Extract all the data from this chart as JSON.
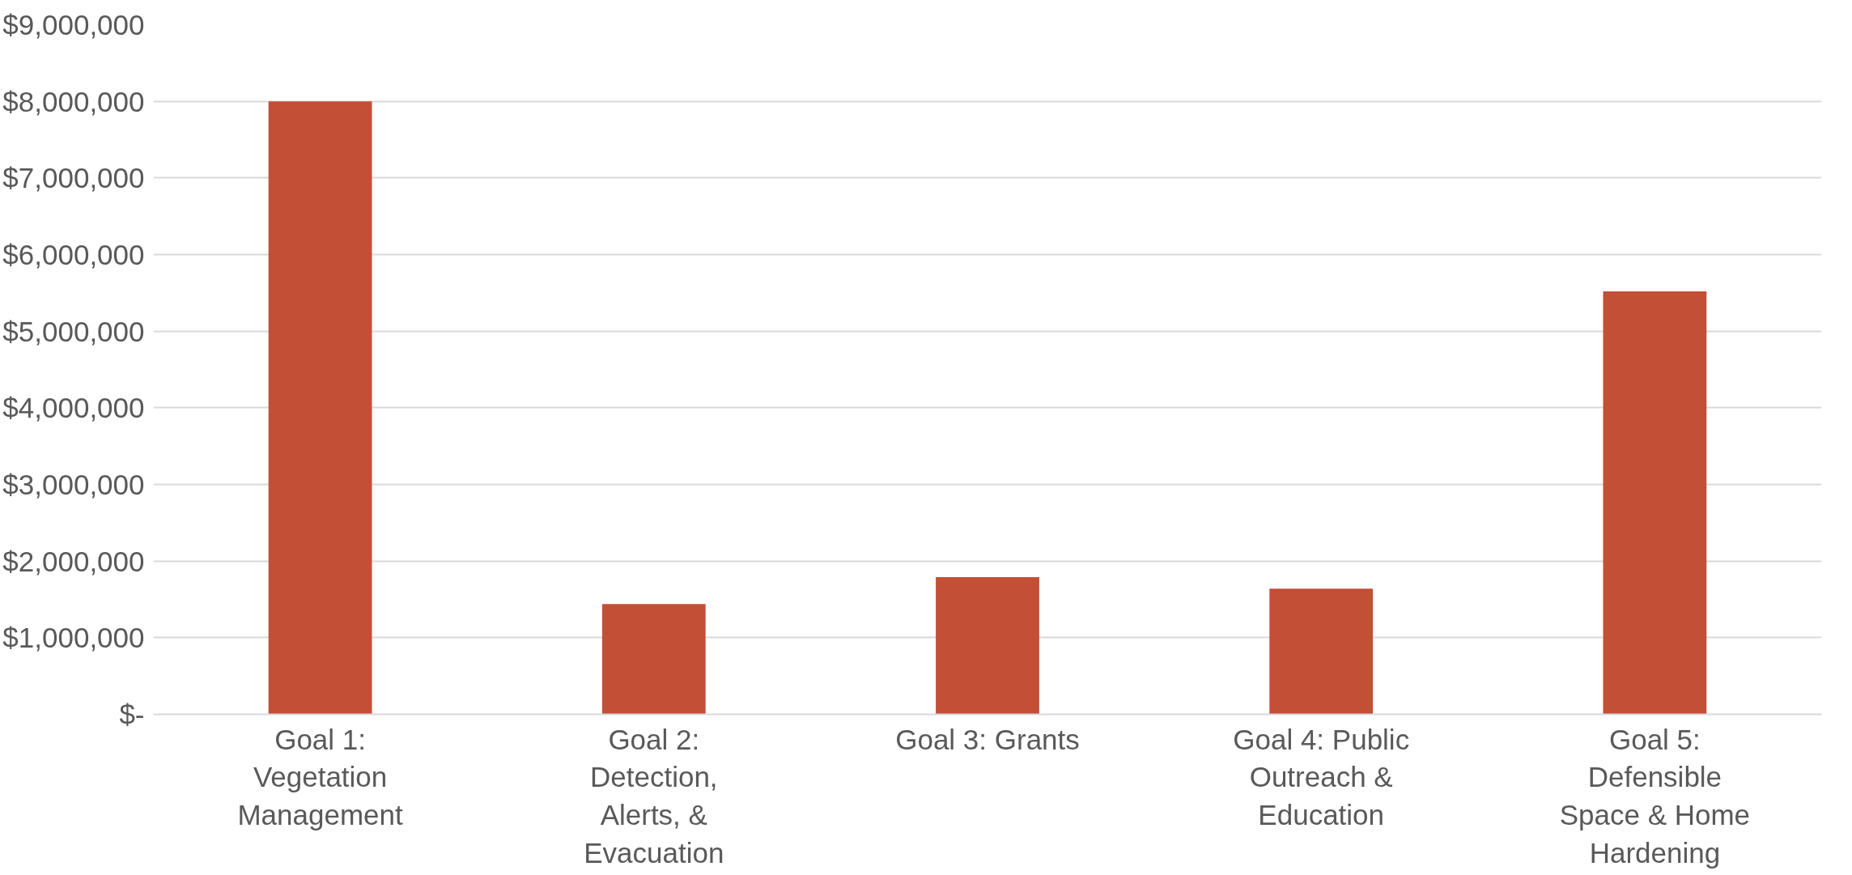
{
  "chart_data": {
    "type": "bar",
    "categories": [
      "Goal 1: Vegetation Management",
      "Goal 2: Detection, Alerts, & Evacuation",
      "Goal 3: Grants",
      "Goal 4: Public Outreach & Education",
      "Goal 5: Defensible Space & Home Hardening"
    ],
    "values": [
      8000000,
      1440000,
      1790000,
      1640000,
      5520000
    ],
    "color": "#c34f37",
    "ylim": [
      0,
      9000000
    ],
    "yticks": [
      {
        "value": 0,
        "label": "$-"
      },
      {
        "value": 1000000,
        "label": "$1,000,000"
      },
      {
        "value": 2000000,
        "label": "$2,000,000"
      },
      {
        "value": 3000000,
        "label": "$3,000,000"
      },
      {
        "value": 4000000,
        "label": "$4,000,000"
      },
      {
        "value": 5000000,
        "label": "$5,000,000"
      },
      {
        "value": 6000000,
        "label": "$6,000,000"
      },
      {
        "value": 7000000,
        "label": "$7,000,000"
      },
      {
        "value": 8000000,
        "label": "$8,000,000"
      },
      {
        "value": 9000000,
        "label": "$9,000,000"
      }
    ],
    "grid": "y"
  }
}
